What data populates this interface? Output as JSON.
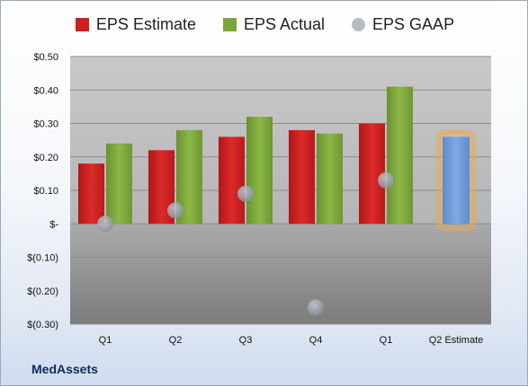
{
  "company": "MedAssets",
  "chart_data": {
    "type": "bar",
    "categories": [
      "Q1",
      "Q2",
      "Q3",
      "Q4",
      "Q1",
      "Q2 Estimate"
    ],
    "series": [
      {
        "name": "EPS Estimate",
        "color": "#cc1f1f",
        "values": [
          0.18,
          0.22,
          0.26,
          0.28,
          0.3,
          null
        ]
      },
      {
        "name": "EPS Actual",
        "color": "#7ea53a",
        "values": [
          0.24,
          0.28,
          0.32,
          0.27,
          0.41,
          null
        ]
      },
      {
        "name": "EPS GAAP",
        "color": "#9ea6b0",
        "marker": "circle",
        "values": [
          0.0,
          0.04,
          0.09,
          -0.25,
          0.13,
          null
        ]
      }
    ],
    "highlight": {
      "category": "Q2 Estimate",
      "value": 0.26,
      "color": "#6e9bd6",
      "glow": "#f2a64a"
    },
    "ylim": [
      -0.3,
      0.5
    ],
    "yticks": [
      {
        "value": 0.5,
        "label": "$0.50"
      },
      {
        "value": 0.4,
        "label": "$0.40"
      },
      {
        "value": 0.3,
        "label": "$0.30"
      },
      {
        "value": 0.2,
        "label": "$0.20"
      },
      {
        "value": 0.1,
        "label": "$0.10"
      },
      {
        "value": 0.0,
        "label": "$-"
      },
      {
        "value": -0.1,
        "label": "$(0.10)"
      },
      {
        "value": -0.2,
        "label": "$(0.20)"
      },
      {
        "value": -0.3,
        "label": "$(0.30)"
      }
    ],
    "grid": true,
    "legend": "top"
  }
}
